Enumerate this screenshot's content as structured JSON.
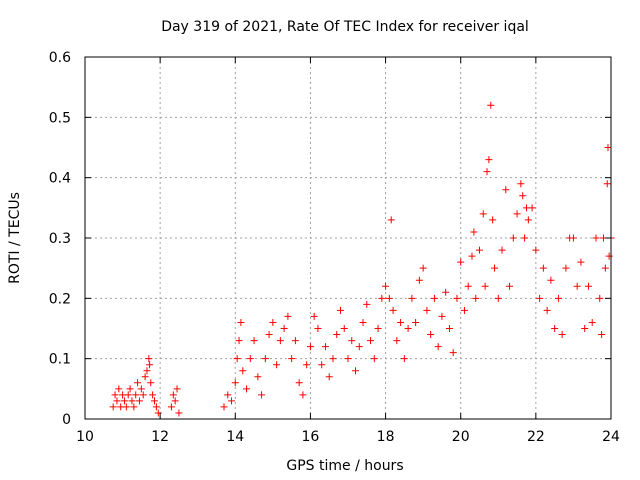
{
  "chart_data": {
    "type": "scatter",
    "title": "Day 319 of 2021, Rate Of TEC Index for receiver iqal",
    "xlabel": "GPS time / hours",
    "ylabel": "ROTI / TECUs",
    "xlim": [
      10,
      24
    ],
    "ylim": [
      0,
      0.6
    ],
    "xticks": [
      "10",
      "12",
      "14",
      "16",
      "18",
      "20",
      "22",
      "24"
    ],
    "yticks": [
      "0",
      "0.1",
      "0.2",
      "0.3",
      "0.4",
      "0.5",
      "0.6"
    ],
    "grid": true,
    "marker": "+",
    "color": "#ff0000",
    "series": [
      {
        "points": [
          [
            10.75,
            0.02
          ],
          [
            10.8,
            0.04
          ],
          [
            10.85,
            0.03
          ],
          [
            10.9,
            0.05
          ],
          [
            10.95,
            0.02
          ],
          [
            11.0,
            0.04
          ],
          [
            11.05,
            0.03
          ],
          [
            11.1,
            0.02
          ],
          [
            11.15,
            0.04
          ],
          [
            11.2,
            0.05
          ],
          [
            11.25,
            0.03
          ],
          [
            11.3,
            0.02
          ],
          [
            11.35,
            0.04
          ],
          [
            11.4,
            0.06
          ],
          [
            11.45,
            0.03
          ],
          [
            11.5,
            0.05
          ],
          [
            11.55,
            0.04
          ],
          [
            11.6,
            0.07
          ],
          [
            11.65,
            0.08
          ],
          [
            11.7,
            0.1
          ],
          [
            11.72,
            0.09
          ],
          [
            11.75,
            0.06
          ],
          [
            11.8,
            0.04
          ],
          [
            11.85,
            0.03
          ],
          [
            11.9,
            0.02
          ],
          [
            11.95,
            0.01
          ],
          [
            12.3,
            0.02
          ],
          [
            12.35,
            0.04
          ],
          [
            12.4,
            0.03
          ],
          [
            12.45,
            0.05
          ],
          [
            12.5,
            0.01
          ],
          [
            13.7,
            0.02
          ],
          [
            13.8,
            0.04
          ],
          [
            13.9,
            0.03
          ],
          [
            14.0,
            0.06
          ],
          [
            14.05,
            0.1
          ],
          [
            14.1,
            0.13
          ],
          [
            14.15,
            0.16
          ],
          [
            14.2,
            0.08
          ],
          [
            14.3,
            0.05
          ],
          [
            14.4,
            0.1
          ],
          [
            14.5,
            0.13
          ],
          [
            14.6,
            0.07
          ],
          [
            14.7,
            0.04
          ],
          [
            14.8,
            0.1
          ],
          [
            14.9,
            0.14
          ],
          [
            15.0,
            0.16
          ],
          [
            15.1,
            0.09
          ],
          [
            15.2,
            0.13
          ],
          [
            15.3,
            0.15
          ],
          [
            15.4,
            0.17
          ],
          [
            15.5,
            0.1
          ],
          [
            15.6,
            0.13
          ],
          [
            15.7,
            0.06
          ],
          [
            15.8,
            0.04
          ],
          [
            15.9,
            0.09
          ],
          [
            16.0,
            0.12
          ],
          [
            16.1,
            0.17
          ],
          [
            16.2,
            0.15
          ],
          [
            16.3,
            0.09
          ],
          [
            16.4,
            0.12
          ],
          [
            16.5,
            0.07
          ],
          [
            16.6,
            0.1
          ],
          [
            16.7,
            0.14
          ],
          [
            16.8,
            0.18
          ],
          [
            16.9,
            0.15
          ],
          [
            17.0,
            0.1
          ],
          [
            17.1,
            0.13
          ],
          [
            17.2,
            0.08
          ],
          [
            17.3,
            0.12
          ],
          [
            17.4,
            0.16
          ],
          [
            17.5,
            0.19
          ],
          [
            17.6,
            0.13
          ],
          [
            17.7,
            0.1
          ],
          [
            17.8,
            0.15
          ],
          [
            17.9,
            0.2
          ],
          [
            18.0,
            0.22
          ],
          [
            18.1,
            0.2
          ],
          [
            18.15,
            0.33
          ],
          [
            18.2,
            0.18
          ],
          [
            18.3,
            0.13
          ],
          [
            18.4,
            0.16
          ],
          [
            18.5,
            0.1
          ],
          [
            18.6,
            0.15
          ],
          [
            18.7,
            0.2
          ],
          [
            18.8,
            0.16
          ],
          [
            18.9,
            0.23
          ],
          [
            19.0,
            0.25
          ],
          [
            19.1,
            0.18
          ],
          [
            19.2,
            0.14
          ],
          [
            19.3,
            0.2
          ],
          [
            19.4,
            0.12
          ],
          [
            19.5,
            0.17
          ],
          [
            19.6,
            0.21
          ],
          [
            19.7,
            0.15
          ],
          [
            19.8,
            0.11
          ],
          [
            19.9,
            0.2
          ],
          [
            20.0,
            0.26
          ],
          [
            20.1,
            0.18
          ],
          [
            20.2,
            0.22
          ],
          [
            20.3,
            0.27
          ],
          [
            20.35,
            0.31
          ],
          [
            20.4,
            0.2
          ],
          [
            20.5,
            0.28
          ],
          [
            20.6,
            0.34
          ],
          [
            20.65,
            0.22
          ],
          [
            20.7,
            0.41
          ],
          [
            20.75,
            0.43
          ],
          [
            20.8,
            0.52
          ],
          [
            20.85,
            0.33
          ],
          [
            20.9,
            0.25
          ],
          [
            21.0,
            0.2
          ],
          [
            21.1,
            0.28
          ],
          [
            21.2,
            0.38
          ],
          [
            21.3,
            0.22
          ],
          [
            21.4,
            0.3
          ],
          [
            21.5,
            0.34
          ],
          [
            21.6,
            0.39
          ],
          [
            21.65,
            0.37
          ],
          [
            21.7,
            0.3
          ],
          [
            21.75,
            0.35
          ],
          [
            21.8,
            0.33
          ],
          [
            21.9,
            0.35
          ],
          [
            22.0,
            0.28
          ],
          [
            22.1,
            0.2
          ],
          [
            22.2,
            0.25
          ],
          [
            22.3,
            0.18
          ],
          [
            22.4,
            0.23
          ],
          [
            22.5,
            0.15
          ],
          [
            22.6,
            0.2
          ],
          [
            22.7,
            0.14
          ],
          [
            22.8,
            0.25
          ],
          [
            22.9,
            0.3
          ],
          [
            23.0,
            0.3
          ],
          [
            23.1,
            0.22
          ],
          [
            23.2,
            0.26
          ],
          [
            23.3,
            0.15
          ],
          [
            23.4,
            0.22
          ],
          [
            23.5,
            0.16
          ],
          [
            23.6,
            0.3
          ],
          [
            23.7,
            0.2
          ],
          [
            23.75,
            0.14
          ],
          [
            23.8,
            0.3
          ],
          [
            23.85,
            0.25
          ],
          [
            23.9,
            0.39
          ],
          [
            23.92,
            0.45
          ],
          [
            23.95,
            0.27
          ],
          [
            24.0,
            0.3
          ]
        ]
      }
    ]
  }
}
